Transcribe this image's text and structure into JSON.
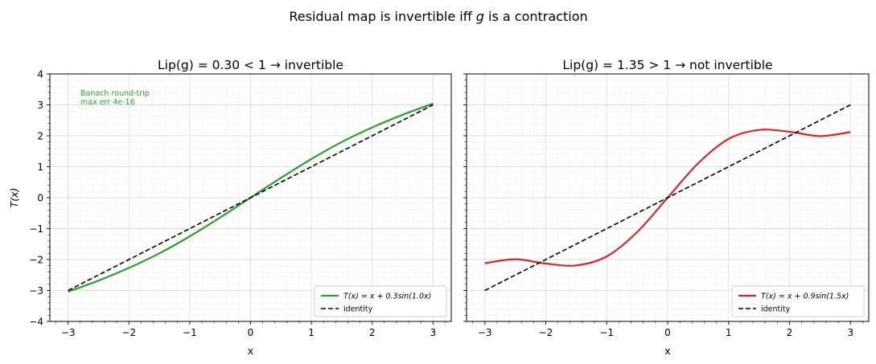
{
  "figure": {
    "suptitle_prefix": "Residual map is invertible iff ",
    "suptitle_var": "g",
    "suptitle_suffix": " is a contraction"
  },
  "chart_data": [
    {
      "type": "line",
      "title": "Lip(g) = 0.30 < 1 → invertible",
      "xlabel": "x",
      "ylabel": "T(x)",
      "xlim": [
        -3.3,
        3.3
      ],
      "ylim": [
        -4,
        4
      ],
      "xticks": [
        -3,
        -2,
        -1,
        0,
        1,
        2,
        3
      ],
      "yticks": [
        -4,
        -3,
        -2,
        -1,
        0,
        1,
        2,
        3,
        4
      ],
      "grid": true,
      "legend_position": "lower-right",
      "annotation": [
        "Banach round-trip",
        "max err 4e-16"
      ],
      "annotation_color": "#2ca02c",
      "series": [
        {
          "name": "T(x) = x + 0.3sin(1.0x)",
          "style": "solid",
          "color": "#2ca02c",
          "x": [
            -3.0,
            -2.5,
            -2.0,
            -1.5,
            -1.0,
            -0.5,
            0.0,
            0.5,
            1.0,
            1.5,
            2.0,
            2.5,
            3.0
          ],
          "y": [
            -3.04,
            -2.68,
            -2.27,
            -1.8,
            -1.25,
            -0.64,
            0.0,
            0.64,
            1.25,
            1.8,
            2.27,
            2.68,
            3.04
          ]
        },
        {
          "name": "identity",
          "style": "dashed",
          "color": "#000000",
          "x": [
            -3.0,
            3.0
          ],
          "y": [
            -3.0,
            3.0
          ]
        }
      ]
    },
    {
      "type": "line",
      "title": "Lip(g) = 1.35 > 1 → not invertible",
      "xlabel": "x",
      "ylabel": "",
      "xlim": [
        -3.3,
        3.3
      ],
      "ylim": [
        -4,
        4
      ],
      "xticks": [
        -3,
        -2,
        -1,
        0,
        1,
        2,
        3
      ],
      "yticks": [
        -4,
        -3,
        -2,
        -1,
        0,
        1,
        2,
        3,
        4
      ],
      "grid": true,
      "legend_position": "lower-right",
      "series": [
        {
          "name": "T(x) = x + 0.9sin(1.5x)",
          "style": "solid",
          "color": "#d62728",
          "x": [
            -3.0,
            -2.5,
            -2.0,
            -1.5,
            -1.0,
            -0.5,
            0.0,
            0.5,
            1.0,
            1.5,
            2.0,
            2.5,
            3.0
          ],
          "y": [
            -2.12,
            -1.99,
            -2.13,
            -2.19,
            -1.9,
            -1.11,
            0.0,
            1.11,
            1.9,
            2.19,
            2.13,
            1.99,
            2.12
          ]
        },
        {
          "name": "identity",
          "style": "dashed",
          "color": "#000000",
          "x": [
            -3.0,
            3.0
          ],
          "y": [
            -3.0,
            3.0
          ]
        }
      ]
    }
  ]
}
